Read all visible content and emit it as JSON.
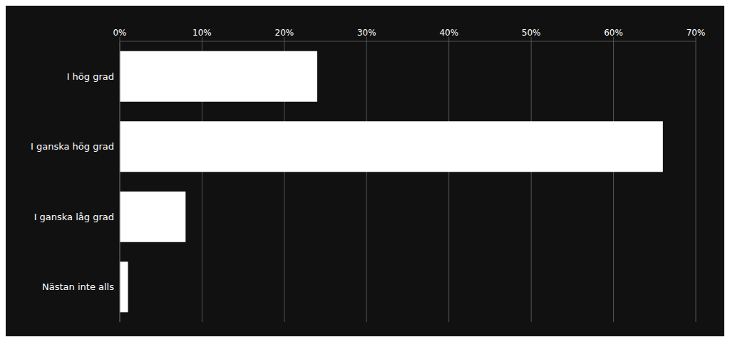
{
  "chart_data": {
    "type": "bar",
    "orientation": "horizontal",
    "categories": [
      "Nästan inte alls",
      "I ganska låg grad",
      "I ganska hög grad",
      "I hög grad"
    ],
    "values": [
      1,
      8,
      66,
      24
    ],
    "color": "#ffffff",
    "xlim": [
      0,
      70
    ],
    "xticks": [
      {
        "value": 0,
        "label": "0%"
      },
      {
        "value": 10,
        "label": "10%"
      },
      {
        "value": 20,
        "label": "20%"
      },
      {
        "value": 30,
        "label": "30%"
      },
      {
        "value": 40,
        "label": "40%"
      },
      {
        "value": 50,
        "label": "50%"
      },
      {
        "value": 60,
        "label": "60%"
      },
      {
        "value": 70,
        "label": "70%"
      }
    ],
    "grid": true
  }
}
